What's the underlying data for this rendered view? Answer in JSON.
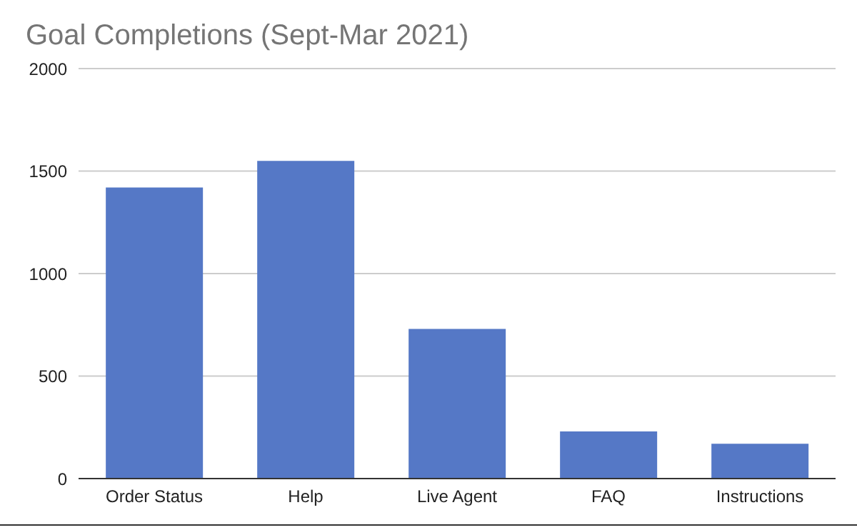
{
  "chart_data": {
    "type": "bar",
    "title": "Goal Completions (Sept-Mar 2021)",
    "categories": [
      "Order Status",
      "Help",
      "Live Agent",
      "FAQ",
      "Instructions"
    ],
    "values": [
      1420,
      1550,
      730,
      230,
      170
    ],
    "color": "#5578c6",
    "ylim": [
      0,
      2000
    ],
    "yticks": [
      0,
      500,
      1000,
      1500,
      2000
    ],
    "grid": "y"
  }
}
